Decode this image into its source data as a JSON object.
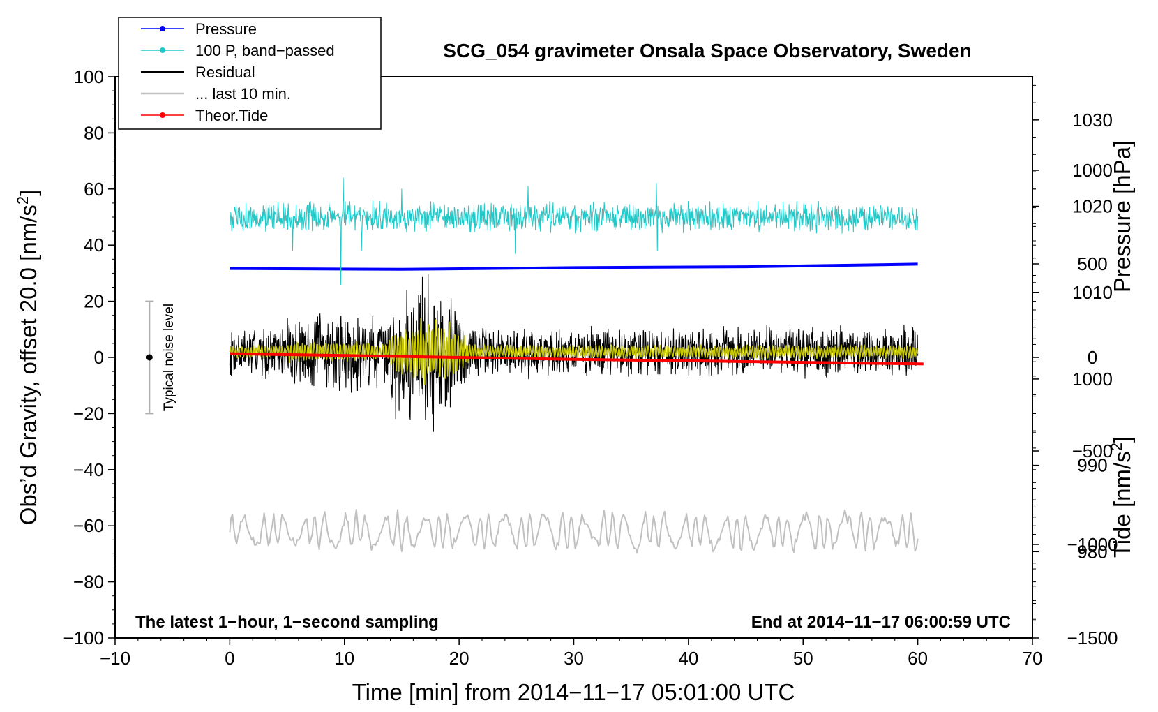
{
  "chart_data": {
    "type": "line",
    "title": "SCG_054 gravimeter Onsala Space Observatory, Sweden",
    "xlabel": "Time [min] from 2014−11−17 05:01:00 UTC",
    "ylabel_left": {
      "prefix": "Obs’d Gravity, offset 20.0 [nm/s",
      "sup": "2",
      "suffix": "]"
    },
    "ylabel_right_pressure": "Pressure [hPa]",
    "ylabel_right_tide": {
      "prefix": "Tide [nm/s",
      "sup": "2",
      "suffix": "]"
    },
    "xlim": [
      -10,
      70
    ],
    "ylim": [
      -100,
      100
    ],
    "pressure_lim": [
      970,
      1035
    ],
    "tide_lim": [
      -1500,
      1500
    ],
    "xticks": [
      {
        "v": -10,
        "label": "−10"
      },
      {
        "v": 0,
        "label": "0"
      },
      {
        "v": 10,
        "label": "10"
      },
      {
        "v": 20,
        "label": "20"
      },
      {
        "v": 30,
        "label": "30"
      },
      {
        "v": 40,
        "label": "40"
      },
      {
        "v": 50,
        "label": "50"
      },
      {
        "v": 60,
        "label": "60"
      },
      {
        "v": 70,
        "label": "70"
      }
    ],
    "yticks": [
      {
        "v": 100,
        "label": "100"
      },
      {
        "v": 80,
        "label": "80"
      },
      {
        "v": 60,
        "label": "60"
      },
      {
        "v": 40,
        "label": "40"
      },
      {
        "v": 20,
        "label": "20"
      },
      {
        "v": 0,
        "label": "0"
      },
      {
        "v": -20,
        "label": "−20"
      },
      {
        "v": -40,
        "label": "−40"
      },
      {
        "v": -60,
        "label": "−60"
      },
      {
        "v": -80,
        "label": "−80"
      },
      {
        "v": -100,
        "label": "−100"
      }
    ],
    "pressure_ticks": [
      {
        "v": 1030,
        "label": "1030"
      },
      {
        "v": 1020,
        "label": "1020"
      },
      {
        "v": 1010,
        "label": "1010"
      },
      {
        "v": 1000,
        "label": "1000"
      },
      {
        "v": 990,
        "label": "990"
      },
      {
        "v": 980,
        "label": "980"
      }
    ],
    "tide_ticks": [
      {
        "v": 1000,
        "label": "1000"
      },
      {
        "v": 500,
        "label": "500"
      },
      {
        "v": 0,
        "label": "0"
      },
      {
        "v": -500,
        "label": "−500"
      },
      {
        "v": -1000,
        "label": "−1000"
      },
      {
        "v": -1500,
        "label": "−1500"
      }
    ],
    "legend": {
      "placement": "top-left",
      "entries": [
        {
          "name": "Pressure",
          "color": "#0000ff",
          "marker": true
        },
        {
          "name": "100 P, band−passed",
          "color": "#20c8c8",
          "marker": true
        },
        {
          "name": "Residual",
          "color": "#000000",
          "marker": false
        },
        {
          "name": "... last 10 min.",
          "color": "#c0c0c0",
          "marker": false
        },
        {
          "name": "Theor.Tide",
          "color": "#ff0000",
          "marker": true
        }
      ]
    },
    "annotations": {
      "bottom_left": "The latest 1−hour, 1−second sampling",
      "bottom_right": "End at 2014−11−17 06:00:59 UTC",
      "noise_label": "Typical noise level"
    },
    "noise_bar": {
      "x": -7,
      "center": 0,
      "low": -20,
      "high": 20
    },
    "series": [
      {
        "name": "Pressure",
        "axis": "pressure",
        "color": "#0000ff",
        "points": [
          [
            0,
            1012.8
          ],
          [
            15,
            1012.7
          ],
          [
            30,
            1012.9
          ],
          [
            45,
            1013.0
          ],
          [
            60,
            1013.3
          ]
        ]
      },
      {
        "name": "100 P, band−passed",
        "axis": "left",
        "color": "#20c8c8",
        "level": 50,
        "amp": 5,
        "spikes": [
          [
            9.7,
            -24
          ],
          [
            9.9,
            14
          ],
          [
            5.5,
            -12
          ],
          [
            24.9,
            -13
          ],
          [
            37.2,
            12
          ],
          [
            37.3,
            -12
          ],
          [
            11.5,
            -12
          ],
          [
            15.0,
            10
          ],
          [
            26.0,
            11
          ]
        ]
      },
      {
        "name": "Residual",
        "axis": "left",
        "color": "#000000",
        "level": 2,
        "amp": 7,
        "burst": {
          "start": 13,
          "end": 21,
          "amp": 26
        }
      },
      {
        "name": "Residual (smoothed)",
        "axis": "left",
        "color": "#c8c800",
        "level": 2,
        "amp": 2.5,
        "burst": {
          "start": 13.2,
          "end": 21.5,
          "amp": 14
        }
      },
      {
        "name": "... last 10 min.",
        "axis": "left",
        "color": "#c0c0c0",
        "level": -62,
        "amp": 6,
        "xlim": [
          0,
          60
        ]
      },
      {
        "name": "Theor.Tide",
        "axis": "tide",
        "color": "#ff0000",
        "points": [
          [
            0,
            20
          ],
          [
            30,
            -10
          ],
          [
            60.5,
            -35
          ]
        ]
      }
    ]
  }
}
